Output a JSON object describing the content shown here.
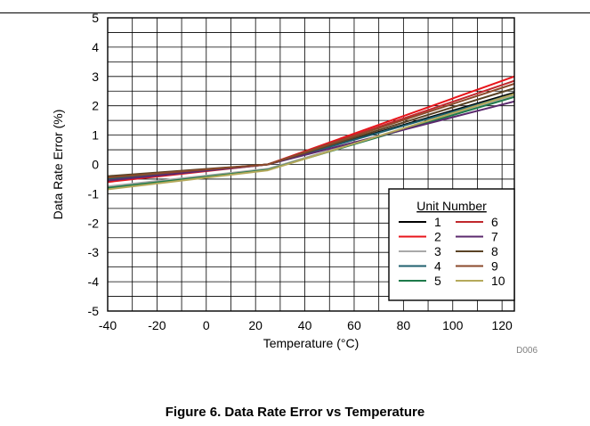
{
  "chart_data": {
    "type": "line",
    "xlabel": "Temperature (°C)",
    "ylabel": "Data Rate Error (%)",
    "xlim": [
      -40,
      125
    ],
    "ylim": [
      -5,
      5
    ],
    "xticks": [
      -40,
      -20,
      0,
      20,
      40,
      60,
      80,
      100,
      120
    ],
    "yticks": [
      -5,
      -4,
      -3,
      -2,
      -1,
      0,
      1,
      2,
      3,
      4,
      5
    ],
    "x_minor_step": 10,
    "y_minor_step": 0.5,
    "grid": true,
    "legend": {
      "title": "Unit Number",
      "placement": "bottom-right"
    },
    "x": [
      -40,
      25,
      125
    ],
    "series": [
      {
        "name": "1",
        "color": "#000000",
        "values": [
          -0.45,
          0.0,
          2.45
        ]
      },
      {
        "name": "2",
        "color": "#e8151b",
        "values": [
          -0.6,
          0.0,
          3.0
        ]
      },
      {
        "name": "3",
        "color": "#a9a9a9",
        "values": [
          -0.75,
          -0.15,
          2.35
        ]
      },
      {
        "name": "4",
        "color": "#1f5f6e",
        "values": [
          -0.5,
          0.0,
          2.4
        ]
      },
      {
        "name": "5",
        "color": "#1e7a4a",
        "values": [
          -0.8,
          -0.18,
          2.3
        ]
      },
      {
        "name": "6",
        "color": "#c0282d",
        "values": [
          -0.55,
          0.0,
          2.85
        ]
      },
      {
        "name": "7",
        "color": "#5b2a6e",
        "values": [
          -0.55,
          0.0,
          2.15
        ]
      },
      {
        "name": "8",
        "color": "#5a4326",
        "values": [
          -0.4,
          0.0,
          2.6
        ]
      },
      {
        "name": "9",
        "color": "#8b4a2b",
        "values": [
          -0.45,
          0.0,
          2.75
        ]
      },
      {
        "name": "10",
        "color": "#b5a95b",
        "values": [
          -0.85,
          -0.2,
          2.4
        ]
      }
    ]
  },
  "figure_id": "D006",
  "caption": "Figure 6. Data Rate Error vs Temperature"
}
